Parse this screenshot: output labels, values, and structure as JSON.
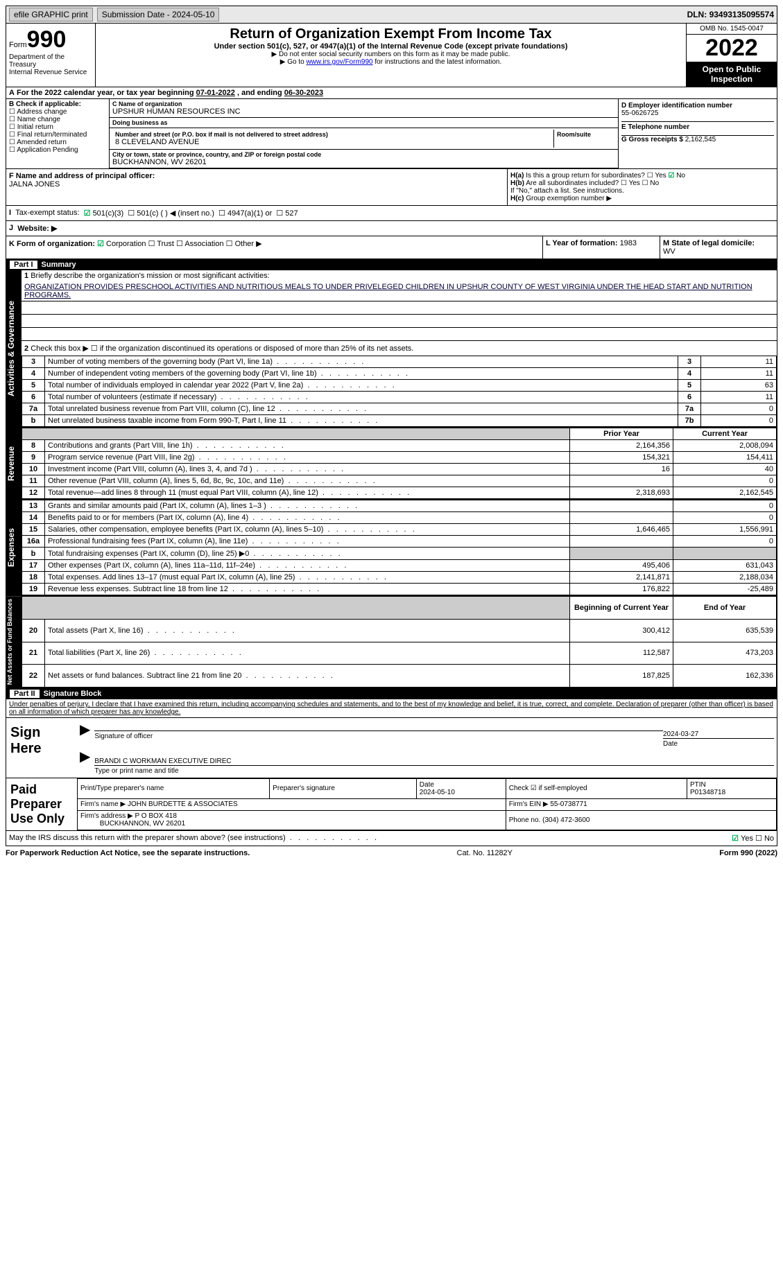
{
  "top": {
    "efile": "efile GRAPHIC print",
    "submission_label": "Submission Date - ",
    "submission_date": "2024-05-10",
    "dln_label": "DLN: ",
    "dln": "93493135095574"
  },
  "header": {
    "form_word": "Form",
    "form_no": "990",
    "dept": "Department of the Treasury",
    "irs": "Internal Revenue Service",
    "title": "Return of Organization Exempt From Income Tax",
    "sub": "Under section 501(c), 527, or 4947(a)(1) of the Internal Revenue Code (except private foundations)",
    "note1": "▶ Do not enter social security numbers on this form as it may be made public.",
    "note2_pre": "▶ Go to ",
    "note2_link": "www.irs.gov/Form990",
    "note2_post": " for instructions and the latest information.",
    "omb": "OMB No. 1545-0047",
    "year": "2022",
    "inspect": "Open to Public Inspection"
  },
  "A": {
    "text_pre": "For the 2022 calendar year, or tax year beginning ",
    "begin": "07-01-2022",
    "mid": " , and ending ",
    "end": "06-30-2023"
  },
  "B": {
    "label": "B Check if applicable:",
    "opts": [
      "Address change",
      "Name change",
      "Initial return",
      "Final return/terminated",
      "Amended return",
      "Application Pending"
    ]
  },
  "C": {
    "name_label": "C Name of organization",
    "name": "UPSHUR HUMAN RESOURCES INC",
    "dba_label": "Doing business as",
    "dba": "",
    "street_label": "Number and street (or P.O. box if mail is not delivered to street address)",
    "room_label": "Room/suite",
    "street": "8 CLEVELAND AVENUE",
    "city_label": "City or town, state or province, country, and ZIP or foreign postal code",
    "city": "BUCKHANNON, WV  26201"
  },
  "D": {
    "label": "D Employer identification number",
    "value": "55-0626725"
  },
  "E": {
    "label": "E Telephone number",
    "value": ""
  },
  "G": {
    "label": "G Gross receipts $ ",
    "value": "2,162,545"
  },
  "F": {
    "label": "F  Name and address of principal officer:",
    "value": "JALNA JONES"
  },
  "H": {
    "a": "Is this a group return for subordinates?",
    "b": "Are all subordinates included?",
    "b_note": "If \"No,\" attach a list. See instructions.",
    "c": "Group exemption number ▶",
    "yes": "Yes",
    "no": "No"
  },
  "I": {
    "label": "Tax-exempt status:",
    "opts": [
      "501(c)(3)",
      "501(c) (  ) ◀ (insert no.)",
      "4947(a)(1) or",
      "527"
    ]
  },
  "J": {
    "label": "Website: ▶",
    "value": ""
  },
  "K": {
    "label": "K Form of organization:",
    "opts": [
      "Corporation",
      "Trust",
      "Association",
      "Other ▶"
    ]
  },
  "L": {
    "label": "L Year of formation: ",
    "value": "1983"
  },
  "M": {
    "label": "M State of legal domicile:",
    "value": "WV"
  },
  "part1": {
    "bar": "Summary",
    "pt": "Part I",
    "l1": "Briefly describe the organization's mission or most significant activities:",
    "mission": "ORGANIZATION PROVIDES PRESCHOOL ACTIVITIES AND NUTRITIOUS MEALS TO UNDER PRIVELEGED CHILDREN IN UPSHUR COUNTY OF WEST VIRGINIA UNDER THE HEAD START AND NUTRITION PROGRAMS.",
    "l2": "Check this box ▶ ☐ if the organization discontinued its operations or disposed of more than 25% of its net assets.",
    "lines": [
      {
        "n": "3",
        "t": "Number of voting members of the governing body (Part VI, line 1a)",
        "box": "3",
        "v": "11"
      },
      {
        "n": "4",
        "t": "Number of independent voting members of the governing body (Part VI, line 1b)",
        "box": "4",
        "v": "11"
      },
      {
        "n": "5",
        "t": "Total number of individuals employed in calendar year 2022 (Part V, line 2a)",
        "box": "5",
        "v": "63"
      },
      {
        "n": "6",
        "t": "Total number of volunteers (estimate if necessary)",
        "box": "6",
        "v": "11"
      },
      {
        "n": "7a",
        "t": "Total unrelated business revenue from Part VIII, column (C), line 12",
        "box": "7a",
        "v": "0"
      },
      {
        "n": "b",
        "t": "Net unrelated business taxable income from Form 990-T, Part I, line 11",
        "box": "7b",
        "v": "0"
      }
    ],
    "py": "Prior Year",
    "cy": "Current Year",
    "rev_tab": "Revenue",
    "exp_tab": "Expenses",
    "na_tab": "Net Assets or Fund Balances",
    "ag_tab": "Activities & Governance",
    "rev": [
      {
        "n": "8",
        "t": "Contributions and grants (Part VIII, line 1h)",
        "p": "2,164,356",
        "c": "2,008,094"
      },
      {
        "n": "9",
        "t": "Program service revenue (Part VIII, line 2g)",
        "p": "154,321",
        "c": "154,411"
      },
      {
        "n": "10",
        "t": "Investment income (Part VIII, column (A), lines 3, 4, and 7d )",
        "p": "16",
        "c": "40"
      },
      {
        "n": "11",
        "t": "Other revenue (Part VIII, column (A), lines 5, 6d, 8c, 9c, 10c, and 11e)",
        "p": "",
        "c": "0"
      },
      {
        "n": "12",
        "t": "Total revenue—add lines 8 through 11 (must equal Part VIII, column (A), line 12)",
        "p": "2,318,693",
        "c": "2,162,545"
      }
    ],
    "exp": [
      {
        "n": "13",
        "t": "Grants and similar amounts paid (Part IX, column (A), lines 1–3 )",
        "p": "",
        "c": "0"
      },
      {
        "n": "14",
        "t": "Benefits paid to or for members (Part IX, column (A), line 4)",
        "p": "",
        "c": "0"
      },
      {
        "n": "15",
        "t": "Salaries, other compensation, employee benefits (Part IX, column (A), lines 5–10)",
        "p": "1,646,465",
        "c": "1,556,991"
      },
      {
        "n": "16a",
        "t": "Professional fundraising fees (Part IX, column (A), line 11e)",
        "p": "",
        "c": "0"
      },
      {
        "n": "b",
        "t": "Total fundraising expenses (Part IX, column (D), line 25) ▶0",
        "p": "shade",
        "c": "shade"
      },
      {
        "n": "17",
        "t": "Other expenses (Part IX, column (A), lines 11a–11d, 11f–24e)",
        "p": "495,406",
        "c": "631,043"
      },
      {
        "n": "18",
        "t": "Total expenses. Add lines 13–17 (must equal Part IX, column (A), line 25)",
        "p": "2,141,871",
        "c": "2,188,034"
      },
      {
        "n": "19",
        "t": "Revenue less expenses. Subtract line 18 from line 12",
        "p": "176,822",
        "c": "-25,489"
      }
    ],
    "boy": "Beginning of Current Year",
    "eoy": "End of Year",
    "na": [
      {
        "n": "20",
        "t": "Total assets (Part X, line 16)",
        "p": "300,412",
        "c": "635,539"
      },
      {
        "n": "21",
        "t": "Total liabilities (Part X, line 26)",
        "p": "112,587",
        "c": "473,203"
      },
      {
        "n": "22",
        "t": "Net assets or fund balances. Subtract line 21 from line 20",
        "p": "187,825",
        "c": "162,336"
      }
    ]
  },
  "part2": {
    "pt": "Part II",
    "bar": "Signature Block",
    "decl": "Under penalties of perjury, I declare that I have examined this return, including accompanying schedules and statements, and to the best of my knowledge and belief, it is true, correct, and complete. Declaration of preparer (other than officer) is based on all information of which preparer has any knowledge.",
    "sign_here": "Sign Here",
    "sig_officer": "Signature of officer",
    "sig_date": "2024-03-27",
    "date_label": "Date",
    "name_title": "BRANDI C WORKMAN  EXECUTIVE DIREC",
    "name_label": "Type or print name and title"
  },
  "prep": {
    "label": "Paid Preparer Use Only",
    "h": [
      "Print/Type preparer's name",
      "Preparer's signature",
      "Date",
      "Check ☑ if self-employed",
      "PTIN"
    ],
    "date": "2024-05-10",
    "ptin": "P01348718",
    "firm_name_l": "Firm's name   ▶",
    "firm_name": "JOHN BURDETTE & ASSOCIATES",
    "firm_ein_l": "Firm's EIN ▶",
    "firm_ein": "55-0738771",
    "firm_addr_l": "Firm's address ▶",
    "firm_addr1": "P O BOX 418",
    "firm_addr2": "BUCKHANNON, WV  26201",
    "phone_l": "Phone no.",
    "phone": "(304) 472-3600"
  },
  "discuss": {
    "t": "May the IRS discuss this return with the preparer shown above? (see instructions)",
    "yes": "Yes",
    "no": "No"
  },
  "footer": {
    "l": "For Paperwork Reduction Act Notice, see the separate instructions.",
    "m": "Cat. No. 11282Y",
    "r": "Form 990 (2022)"
  }
}
